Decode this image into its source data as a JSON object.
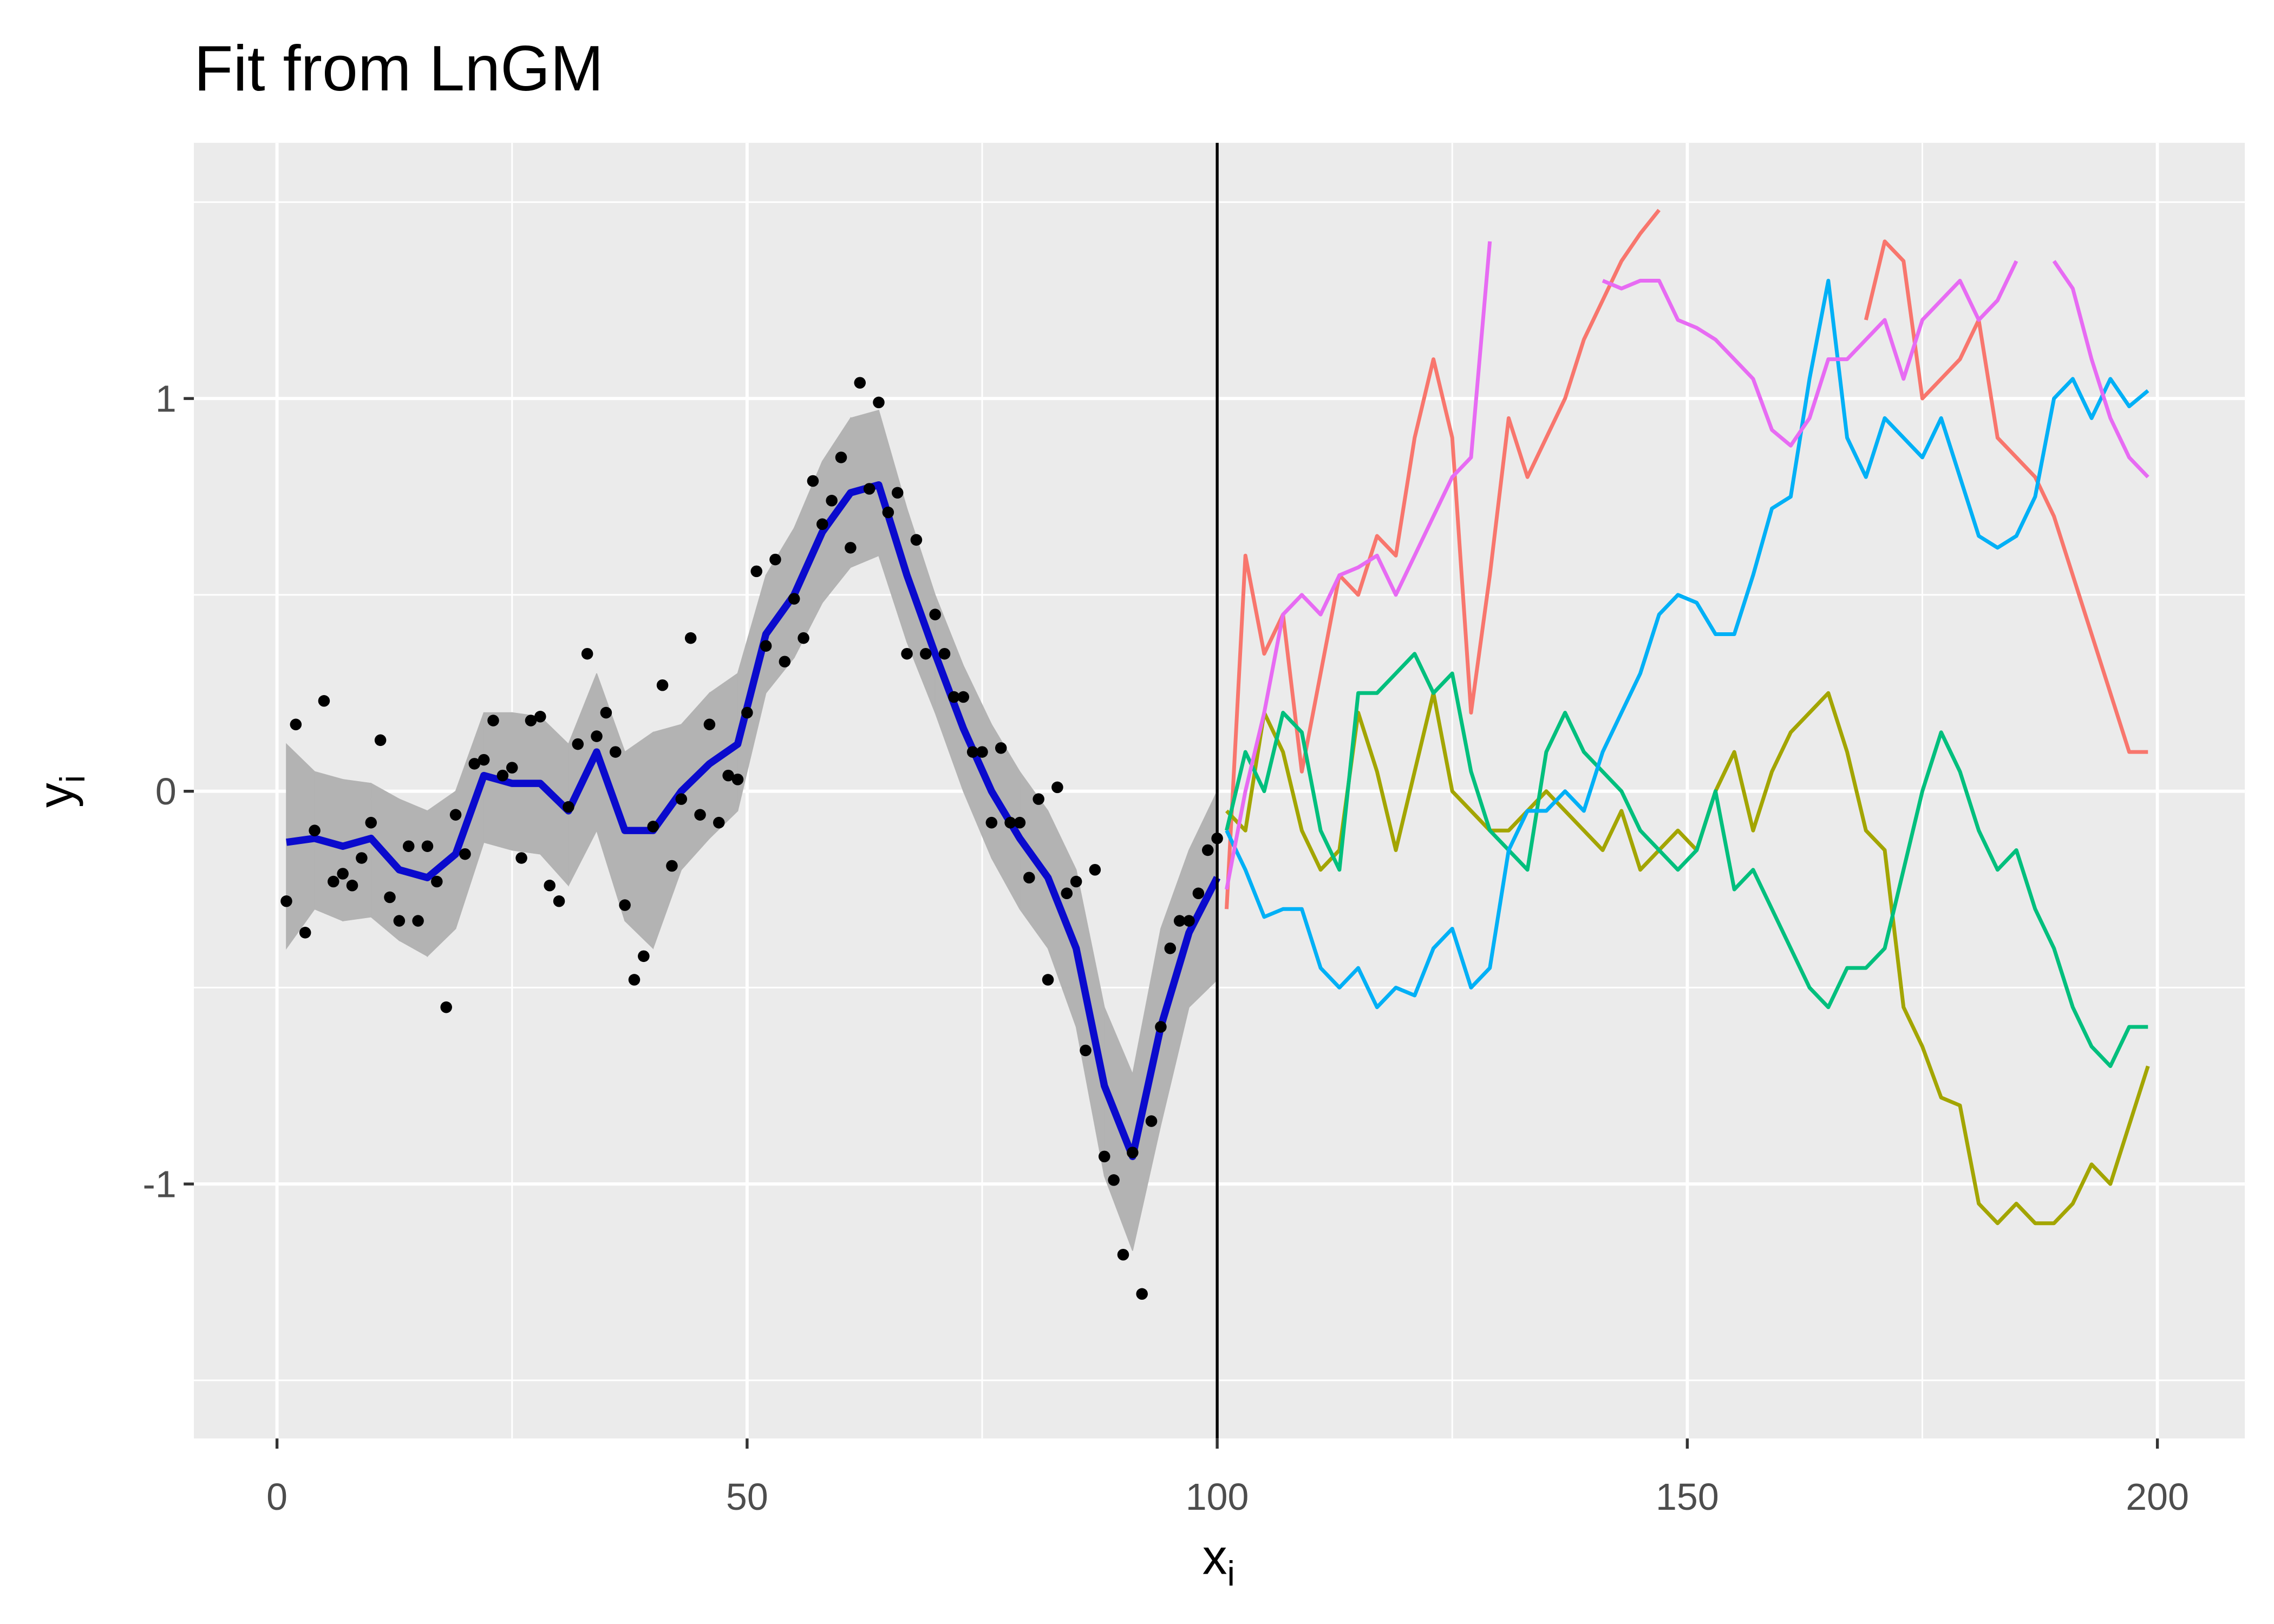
{
  "chart_data": {
    "type": "line",
    "title": "Fit from LnGM",
    "xlabel": "x",
    "xlabel_sub": "i",
    "ylabel": "y",
    "ylabel_sub": "i",
    "xlim": [
      -8.84,
      209.3
    ],
    "ylim": [
      -1.648,
      1.651
    ],
    "xticks": [
      0,
      50,
      100,
      150,
      200
    ],
    "yticks": [
      -1,
      0,
      1
    ],
    "x_minor_grid": [
      25,
      75,
      125,
      175
    ],
    "y_minor_grid": [
      -1.5,
      -0.5,
      0.5,
      1.5
    ],
    "grid": true,
    "vline": 100,
    "points": {
      "color": "#000000",
      "x": [
        1,
        2,
        3,
        4,
        5,
        6,
        7,
        8,
        9,
        10,
        11,
        12,
        13,
        14,
        15,
        16,
        17,
        18,
        19,
        20,
        21,
        22,
        23,
        24,
        25,
        26,
        27,
        28,
        29,
        30,
        31,
        32,
        33,
        34,
        35,
        36,
        37,
        38,
        39,
        40,
        41,
        42,
        43,
        44,
        45,
        46,
        47,
        48,
        49,
        50,
        51,
        52,
        53,
        54,
        55,
        56,
        57,
        58,
        59,
        60,
        61,
        62,
        63,
        64,
        65,
        66,
        67,
        68,
        69,
        70,
        71,
        72,
        73,
        74,
        75,
        76,
        77,
        78,
        79,
        80,
        81,
        82,
        83,
        84,
        85,
        86,
        87,
        88,
        89,
        90,
        91,
        92,
        93,
        94,
        95,
        96,
        97,
        98,
        99,
        100
      ],
      "values": [
        -0.28,
        0.17,
        -0.36,
        -0.1,
        0.23,
        -0.23,
        -0.21,
        -0.24,
        -0.17,
        -0.08,
        0.13,
        -0.27,
        -0.33,
        -0.14,
        -0.33,
        -0.14,
        -0.23,
        -0.55,
        -0.06,
        -0.16,
        0.07,
        0.08,
        0.18,
        0.04,
        0.06,
        -0.17,
        0.18,
        0.19,
        -0.24,
        -0.28,
        -0.04,
        0.12,
        0.35,
        0.14,
        0.2,
        0.1,
        -0.29,
        -0.48,
        -0.42,
        -0.09,
        0.27,
        -0.19,
        -0.02,
        0.39,
        -0.06,
        0.17,
        -0.08,
        0.04,
        0.03,
        0.2,
        0.56,
        0.37,
        0.59,
        0.33,
        0.49,
        0.39,
        0.79,
        0.68,
        0.74,
        0.85,
        0.62,
        1.04,
        0.77,
        0.99,
        0.71,
        0.76,
        0.35,
        0.64,
        0.35,
        0.45,
        0.35,
        0.24,
        0.24,
        0.1,
        0.1,
        -0.08,
        0.11,
        -0.08,
        -0.08,
        -0.22,
        -0.02,
        -0.48,
        0.01,
        -0.26,
        -0.23,
        -0.66,
        -0.2,
        -0.93,
        -0.99,
        -1.18,
        -0.92,
        -1.28,
        -0.84,
        -0.6,
        -0.4,
        -0.33,
        -0.33,
        -0.26,
        -0.15,
        -0.12
      ]
    },
    "fit": {
      "color": "#0A0ACD",
      "band_color": "#B3B3B3",
      "x": [
        1,
        4,
        7,
        10,
        13,
        16,
        19,
        22,
        25,
        28,
        31,
        34,
        37,
        40,
        43,
        46,
        49,
        52,
        55,
        58,
        61,
        64,
        67,
        70,
        73,
        76,
        79,
        82,
        85,
        88,
        91,
        94,
        97,
        100
      ],
      "values": [
        -0.13,
        -0.12,
        -0.14,
        -0.12,
        -0.2,
        -0.22,
        -0.16,
        0.04,
        0.02,
        0.02,
        -0.05,
        0.1,
        -0.1,
        -0.1,
        0.0,
        0.07,
        0.12,
        0.4,
        0.5,
        0.66,
        0.76,
        0.78,
        0.55,
        0.35,
        0.16,
        0.0,
        -0.12,
        -0.22,
        -0.4,
        -0.75,
        -0.93,
        -0.6,
        -0.36,
        -0.22
      ],
      "upper": [
        0.12,
        0.05,
        0.03,
        0.02,
        -0.02,
        -0.05,
        0.0,
        0.2,
        0.2,
        0.19,
        0.12,
        0.3,
        0.1,
        0.15,
        0.17,
        0.25,
        0.3,
        0.55,
        0.67,
        0.84,
        0.95,
        0.97,
        0.72,
        0.5,
        0.32,
        0.17,
        0.05,
        -0.05,
        -0.2,
        -0.55,
        -0.72,
        -0.35,
        -0.15,
        0.0
      ],
      "lower": [
        -0.4,
        -0.3,
        -0.33,
        -0.32,
        -0.38,
        -0.42,
        -0.35,
        -0.13,
        -0.15,
        -0.16,
        -0.24,
        -0.1,
        -0.33,
        -0.4,
        -0.2,
        -0.12,
        -0.05,
        0.25,
        0.34,
        0.48,
        0.57,
        0.6,
        0.38,
        0.2,
        0.0,
        -0.17,
        -0.3,
        -0.4,
        -0.6,
        -0.98,
        -1.17,
        -0.85,
        -0.55,
        -0.48
      ]
    },
    "sim": {
      "x": [
        101,
        103,
        105,
        107,
        109,
        111,
        113,
        115,
        117,
        119,
        121,
        123,
        125,
        127,
        129,
        131,
        133,
        135,
        137,
        139,
        141,
        143,
        145,
        147,
        149,
        151,
        153,
        155,
        157,
        159,
        161,
        163,
        165,
        167,
        169,
        171,
        173,
        175,
        177,
        179,
        181,
        183,
        185,
        187,
        189,
        191,
        193,
        195,
        197,
        199
      ],
      "series": [
        {
          "color": "#F8766D",
          "values": [
            -0.3,
            0.6,
            0.35,
            0.45,
            0.05,
            0.3,
            0.55,
            0.5,
            0.65,
            0.6,
            0.9,
            1.1,
            0.9,
            0.2,
            0.55,
            0.95,
            0.8,
            0.9,
            1.0,
            1.15,
            1.25,
            1.35,
            1.42,
            1.48,
            null,
            null,
            null,
            null,
            null,
            null,
            null,
            null,
            null,
            null,
            1.2,
            1.4,
            1.35,
            1.0,
            1.05,
            1.1,
            1.2,
            0.9,
            0.85,
            0.8,
            0.7,
            0.55,
            0.4,
            0.25,
            0.1,
            0.1
          ]
        },
        {
          "color": "#A3A500",
          "values": [
            -0.05,
            -0.1,
            0.2,
            0.1,
            -0.1,
            -0.2,
            -0.15,
            0.2,
            0.05,
            -0.15,
            0.05,
            0.25,
            0.0,
            -0.05,
            -0.1,
            -0.1,
            -0.05,
            0.0,
            -0.05,
            -0.1,
            -0.15,
            -0.05,
            -0.2,
            -0.15,
            -0.1,
            -0.15,
            0.0,
            0.1,
            -0.1,
            0.05,
            0.15,
            0.2,
            0.25,
            0.1,
            -0.1,
            -0.15,
            -0.55,
            -0.65,
            -0.78,
            -0.8,
            -1.05,
            -1.1,
            -1.05,
            -1.1,
            -1.1,
            -1.05,
            -0.95,
            -1.0,
            -0.85,
            -0.7
          ]
        },
        {
          "color": "#00BF7D",
          "values": [
            -0.1,
            0.1,
            0.0,
            0.2,
            0.15,
            -0.1,
            -0.2,
            0.25,
            0.25,
            0.3,
            0.35,
            0.25,
            0.3,
            0.05,
            -0.1,
            -0.15,
            -0.2,
            0.1,
            0.2,
            0.1,
            0.05,
            0.0,
            -0.1,
            -0.15,
            -0.2,
            -0.15,
            0.0,
            -0.25,
            -0.2,
            -0.3,
            -0.4,
            -0.5,
            -0.55,
            -0.45,
            -0.45,
            -0.4,
            -0.2,
            0.0,
            0.15,
            0.05,
            -0.1,
            -0.2,
            -0.15,
            -0.3,
            -0.4,
            -0.55,
            -0.65,
            -0.7,
            -0.6,
            -0.6
          ]
        },
        {
          "color": "#00B0F6",
          "values": [
            -0.1,
            -0.2,
            -0.32,
            -0.3,
            -0.3,
            -0.45,
            -0.5,
            -0.45,
            -0.55,
            -0.5,
            -0.52,
            -0.4,
            -0.35,
            -0.5,
            -0.45,
            -0.15,
            -0.05,
            -0.05,
            0.0,
            -0.05,
            0.1,
            0.2,
            0.3,
            0.45,
            0.5,
            0.48,
            0.4,
            0.4,
            0.55,
            0.72,
            0.75,
            1.05,
            1.3,
            0.9,
            0.8,
            0.95,
            0.9,
            0.85,
            0.95,
            0.8,
            0.65,
            0.62,
            0.65,
            0.75,
            1.0,
            1.05,
            0.95,
            1.05,
            0.98,
            1.02
          ]
        },
        {
          "color": "#E76BF3",
          "values": [
            -0.25,
            0.0,
            0.2,
            0.45,
            0.5,
            0.45,
            0.55,
            0.57,
            0.6,
            0.5,
            0.6,
            0.7,
            0.8,
            0.85,
            1.4,
            null,
            null,
            null,
            null,
            null,
            1.3,
            1.28,
            1.3,
            1.3,
            1.2,
            1.18,
            1.15,
            1.1,
            1.05,
            0.92,
            0.88,
            0.95,
            1.1,
            1.1,
            1.15,
            1.2,
            1.05,
            1.2,
            1.25,
            1.3,
            1.2,
            1.25,
            1.35,
            null,
            1.35,
            1.28,
            1.1,
            0.95,
            0.85,
            0.8
          ]
        }
      ]
    }
  }
}
